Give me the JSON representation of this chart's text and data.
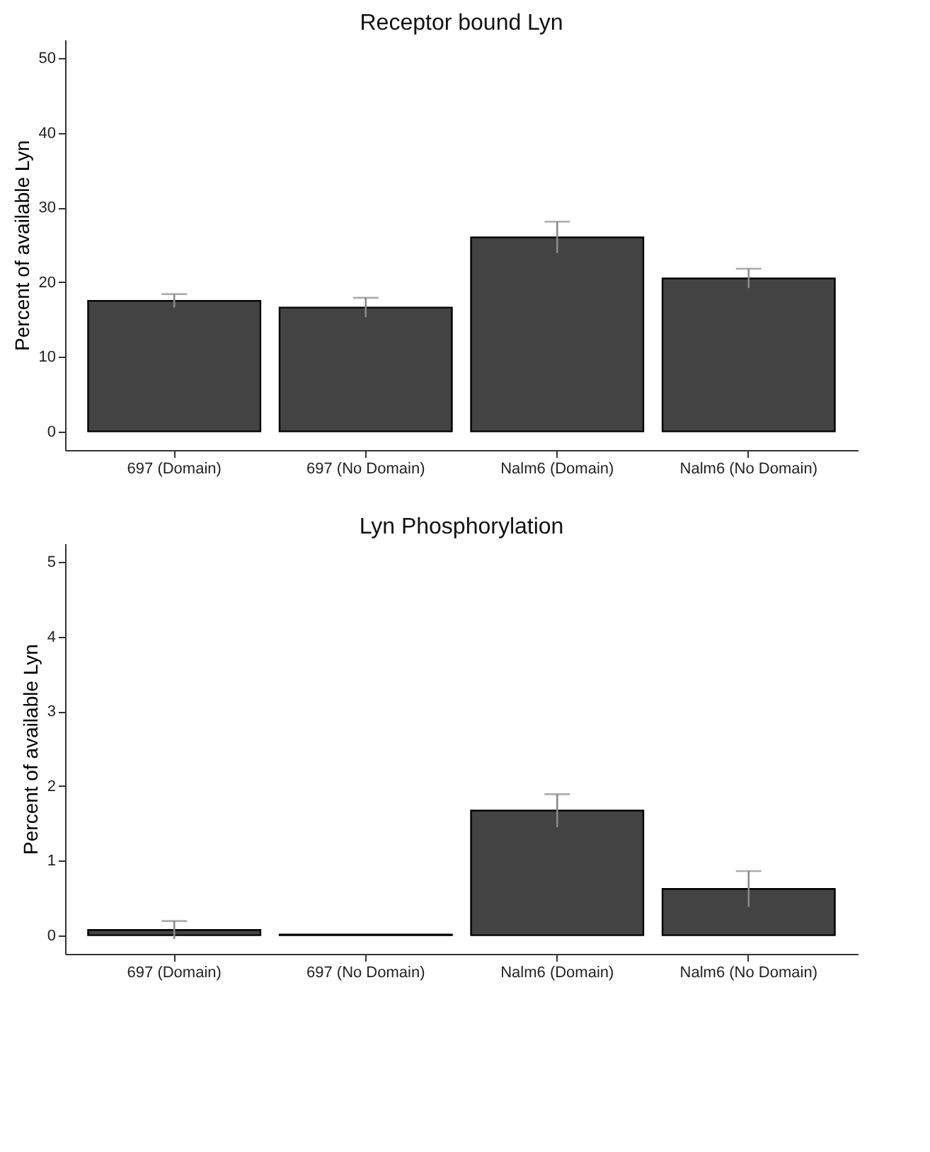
{
  "chart_data": [
    {
      "type": "bar",
      "title": "Receptor bound Lyn",
      "ylabel": "Percent of available Lyn",
      "categories": [
        "697 (Domain)",
        "697 (No Domain)",
        "Nalm6 (Domain)",
        "Nalm6 (No Domain)"
      ],
      "values": [
        17.5,
        16.6,
        26.0,
        20.5
      ],
      "errors": [
        0.9,
        1.3,
        2.1,
        1.3
      ],
      "color": "#434343",
      "ylim": [
        -2.5,
        52.5
      ],
      "yticks": [
        0,
        10,
        20,
        30,
        40,
        50
      ],
      "grid": false
    },
    {
      "type": "bar",
      "title": "Lyn Phosphorylation",
      "ylabel": "Percent of available Lyn",
      "categories": [
        "697 (Domain)",
        "697 (No Domain)",
        "Nalm6 (Domain)",
        "Nalm6 (No Domain)"
      ],
      "values": [
        0.07,
        0.01,
        1.67,
        0.62
      ],
      "errors": [
        0.12,
        null,
        0.22,
        0.24
      ],
      "color": "#434343",
      "ylim": [
        -0.25,
        5.25
      ],
      "yticks": [
        0,
        1,
        2,
        3,
        4,
        5
      ],
      "grid": false
    }
  ]
}
